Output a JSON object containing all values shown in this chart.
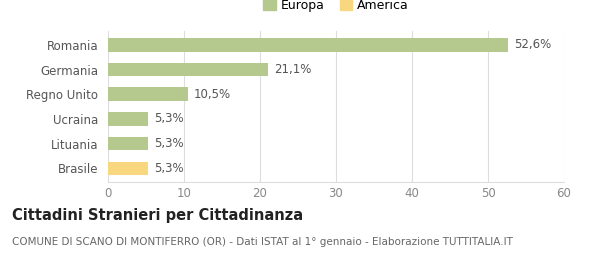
{
  "categories": [
    "Brasile",
    "Lituania",
    "Ucraina",
    "Regno Unito",
    "Germania",
    "Romania"
  ],
  "values": [
    5.3,
    5.3,
    5.3,
    10.5,
    21.1,
    52.6
  ],
  "labels": [
    "5,3%",
    "5,3%",
    "5,3%",
    "10,5%",
    "21,1%",
    "52,6%"
  ],
  "colors": [
    "#f9d77e",
    "#b5c98e",
    "#b5c98e",
    "#b5c98e",
    "#b5c98e",
    "#b5c98e"
  ],
  "legend": [
    {
      "label": "Europa",
      "color": "#b5c98e"
    },
    {
      "label": "America",
      "color": "#f9d77e"
    }
  ],
  "xlim": [
    0,
    60
  ],
  "xticks": [
    0,
    10,
    20,
    30,
    40,
    50,
    60
  ],
  "title": "Cittadini Stranieri per Cittadinanza",
  "subtitle": "COMUNE DI SCANO DI MONTIFERRO (OR) - Dati ISTAT al 1° gennaio - Elaborazione TUTTITALIA.IT",
  "background_color": "#ffffff",
  "bar_height": 0.55,
  "label_fontsize": 8.5,
  "title_fontsize": 10.5,
  "subtitle_fontsize": 7.5,
  "grid_color": "#dddddd",
  "tick_color": "#888888"
}
